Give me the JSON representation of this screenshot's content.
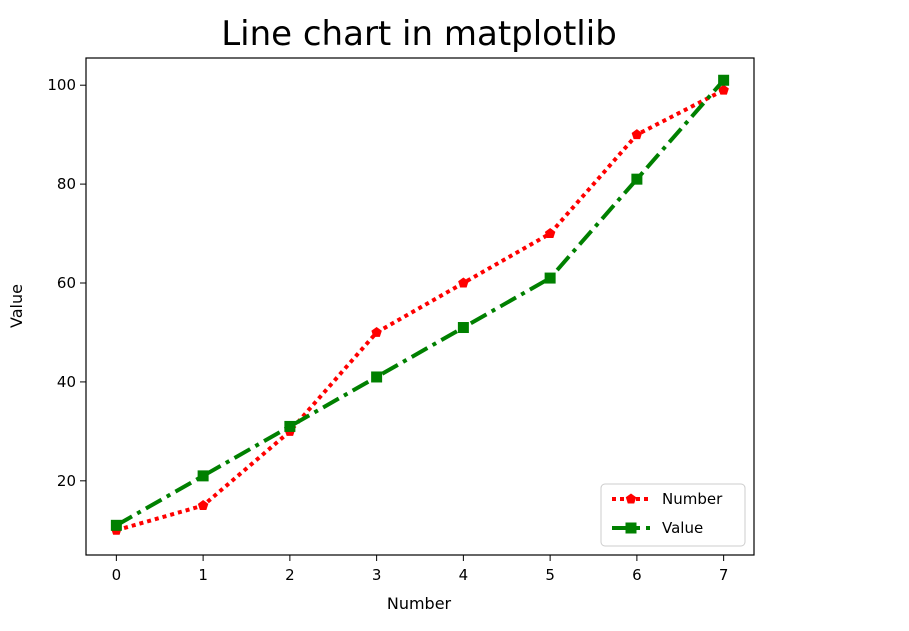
{
  "chart_data": {
    "type": "line",
    "title": "Line chart in matplotlib",
    "xlabel": "Number",
    "ylabel": "Value",
    "xlim": [
      -0.35,
      7.35
    ],
    "ylim": [
      5,
      105.5
    ],
    "xticks": [
      0,
      1,
      2,
      3,
      4,
      5,
      6,
      7
    ],
    "yticks": [
      20,
      40,
      60,
      80,
      100
    ],
    "grid": false,
    "legend": "lower-right",
    "x": [
      0,
      1,
      2,
      3,
      4,
      5,
      6,
      7
    ],
    "series": [
      {
        "name": "Number",
        "values": [
          10,
          15,
          30,
          50,
          60,
          70,
          90,
          99
        ],
        "color": "#ff0000",
        "linestyle": "dotted",
        "marker": "pentagon"
      },
      {
        "name": "Value",
        "values": [
          11,
          21,
          31,
          41,
          51,
          61,
          81,
          101
        ],
        "color": "#008000",
        "linestyle": "dashdot",
        "marker": "square"
      }
    ]
  }
}
